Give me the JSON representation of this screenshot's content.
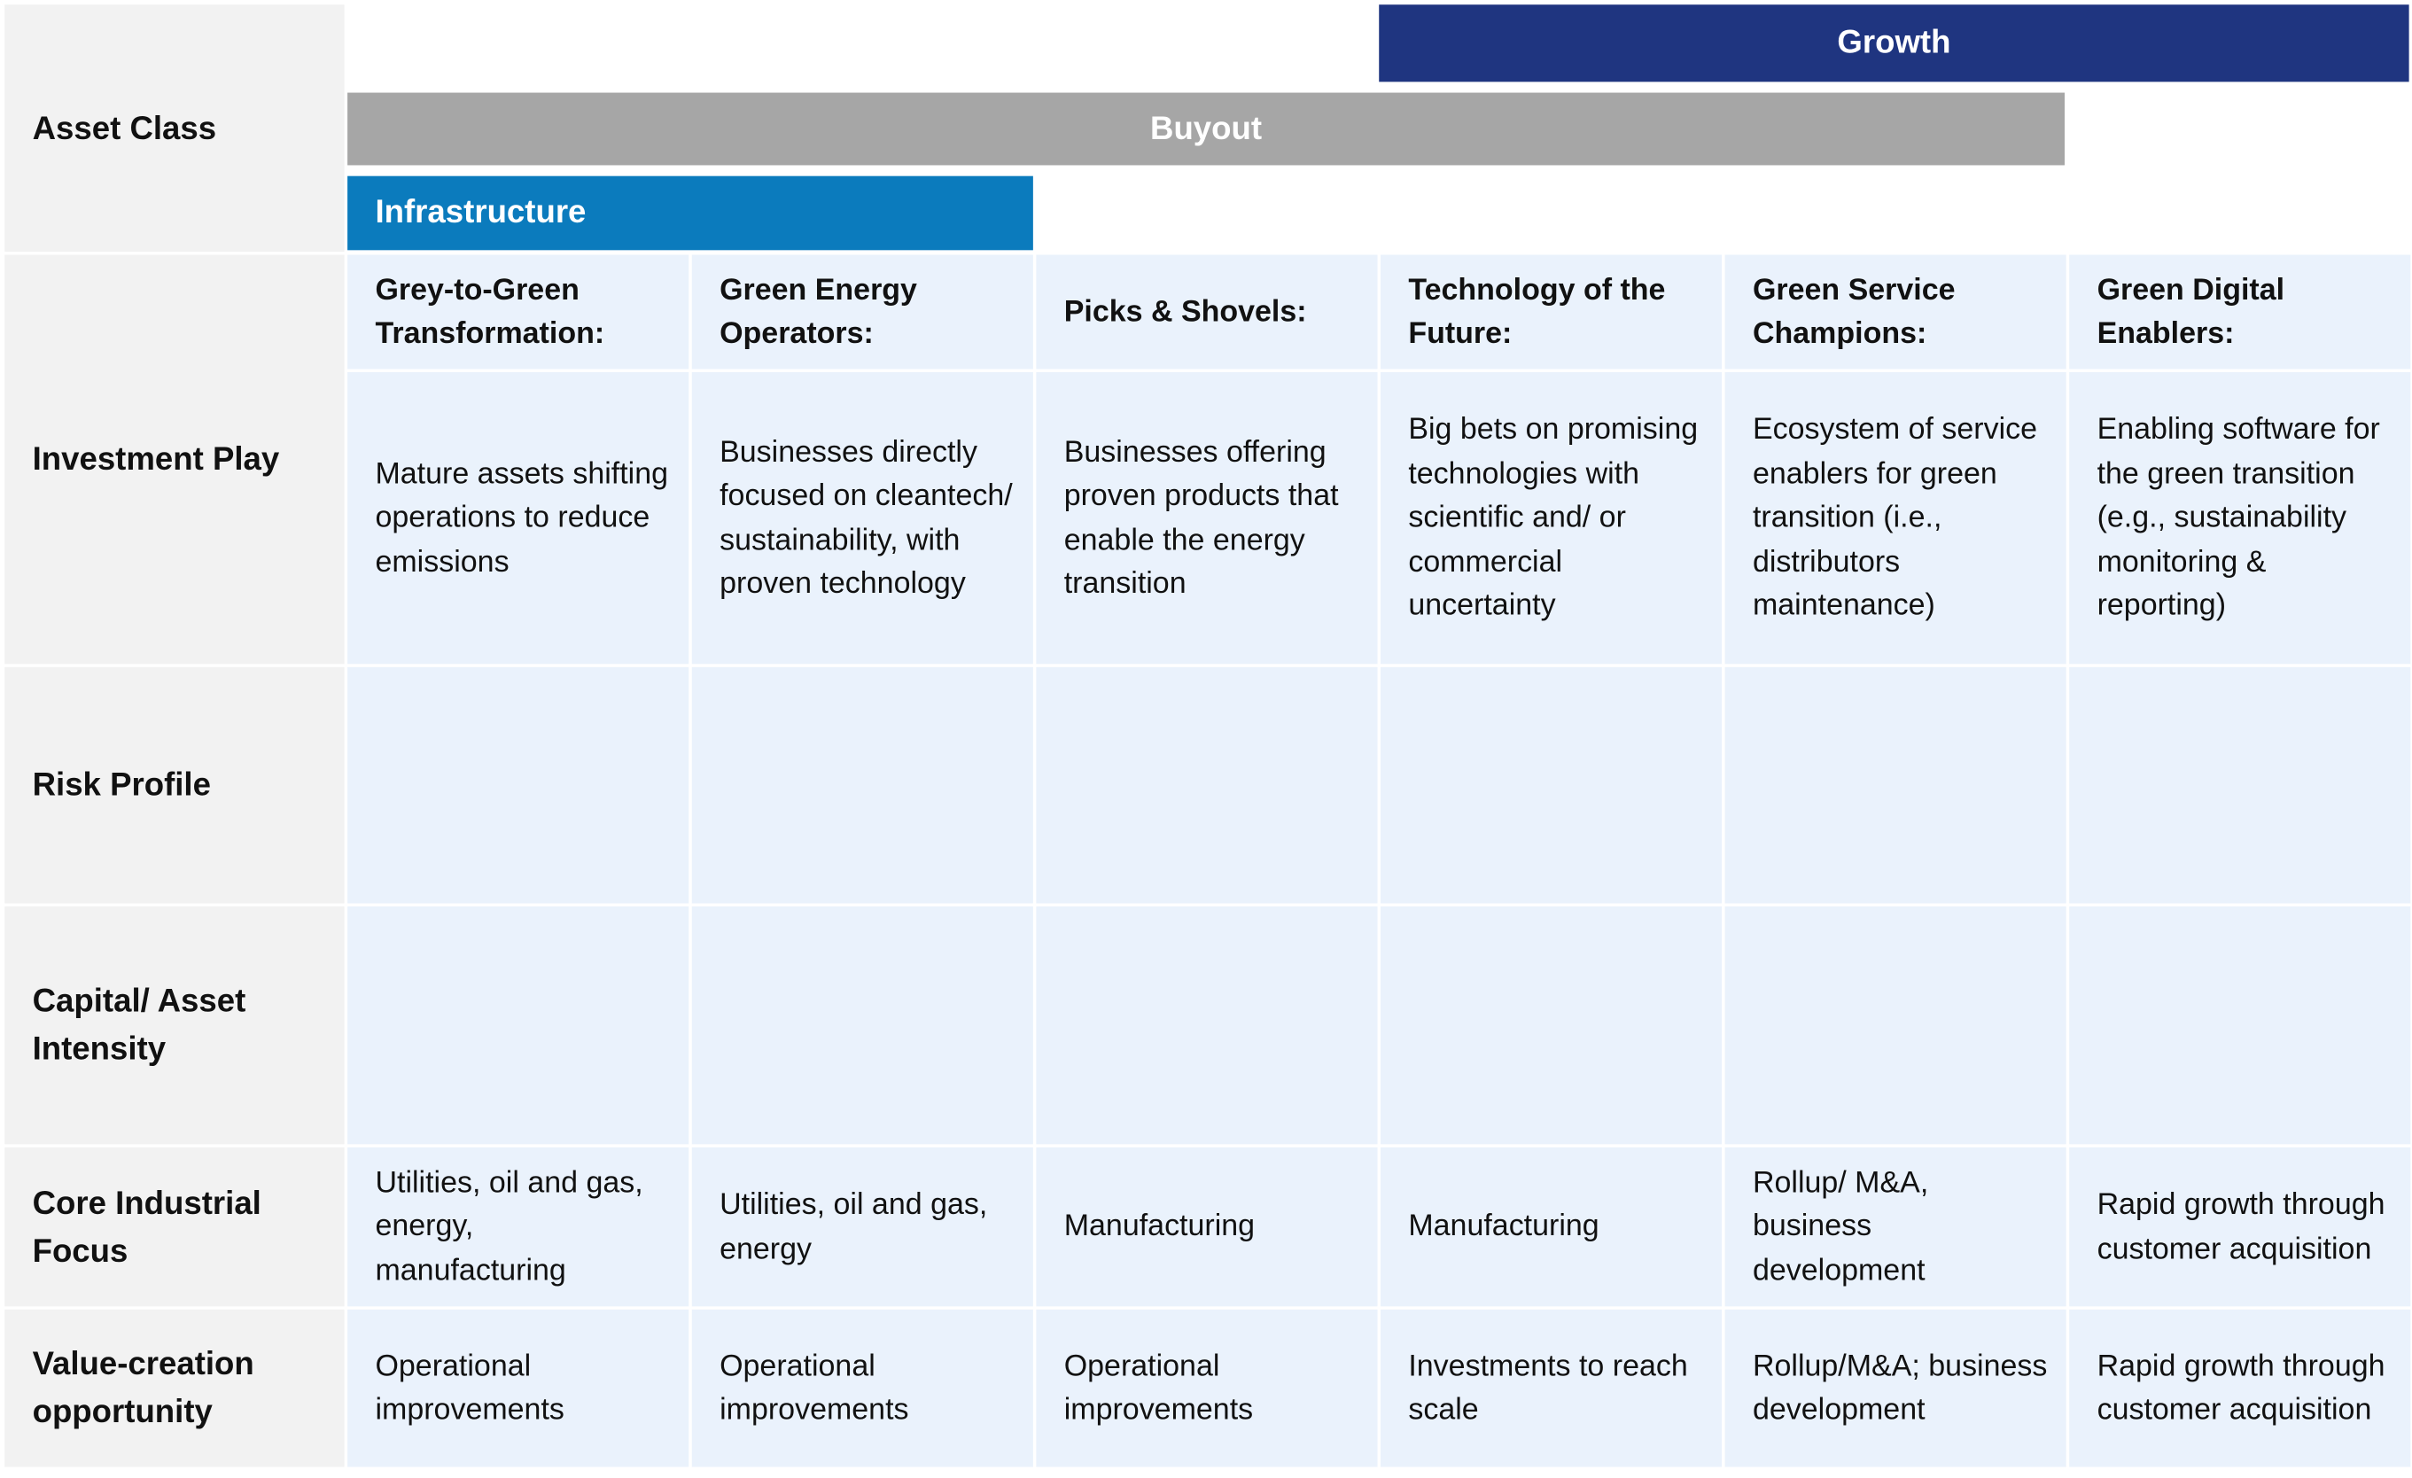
{
  "row_labels": [
    "Asset Class",
    "Investment Play",
    "Risk Profile",
    "Capital/ Asset Intensity",
    "Core Industrial Focus",
    "Value-creation opportunity"
  ],
  "asset_classes": [
    {
      "label": "Growth"
    },
    {
      "label": "Buyout"
    },
    {
      "label": "Infrastructure"
    }
  ],
  "columns": [
    {
      "title": "Grey-to-Green Transformation:",
      "play": "Mature assets shifting operations to reduce emissions",
      "core_focus": "Utilities, oil and gas, energy, manufacturing",
      "value_creation": "Operational improvements"
    },
    {
      "title": "Green Energy Operators:",
      "play": "Businesses directly focused on cleantech/ sustainability, with proven technology",
      "core_focus": "Utilities, oil and gas, energy",
      "value_creation": "Operational improvements"
    },
    {
      "title": "Picks & Shovels:",
      "play": "Businesses offering proven products that enable the energy transition",
      "core_focus": "Manufacturing",
      "value_creation": "Operational improvements"
    },
    {
      "title": "Technology of the Future:",
      "play": "Big bets on promising technologies with scientific and/ or commercial uncertainty",
      "core_focus": "Manufacturing",
      "value_creation": "Investments to reach scale"
    },
    {
      "title": "Green Service Champions:",
      "play": "Ecosystem of service enablers for green transition (i.e., distributors maintenance)",
      "core_focus": "Rollup/ M&A, business development",
      "value_creation": "Rollup/M&A; business development"
    },
    {
      "title": "Green Digital Enablers:",
      "play": "Enabling software for the green transition (e.g., sustainability monitoring & reporting)",
      "core_focus": "Rapid growth through customer acquisition",
      "value_creation": "Rapid growth through customer acquisition"
    }
  ]
}
